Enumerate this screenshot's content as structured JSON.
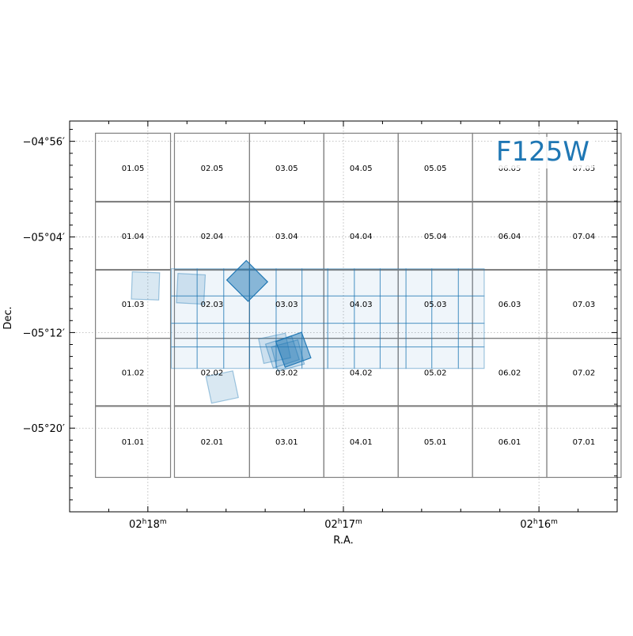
{
  "chart_data": {
    "type": "footprint-map",
    "filter_label": "F125W",
    "xlabel": "R.A.",
    "ylabel": "Dec.",
    "grid": true,
    "colors": {
      "accent": "#1f77b4",
      "tile_outline": "#808080",
      "grid": "#b0b0b0"
    },
    "ra_deg_range": [
      34.6,
      33.9
    ],
    "dec_deg_range": [
      -5.45,
      -4.905
    ],
    "ra_tick_labels": [
      {
        "ra": 34.5,
        "h": "02",
        "m": "18"
      },
      {
        "ra": 34.25,
        "h": "02",
        "m": "17"
      },
      {
        "ra": 34.0,
        "h": "02",
        "m": "16"
      }
    ],
    "dec_tick_labels": [
      {
        "dec": -4.9333,
        "label": "−04°56′"
      },
      {
        "dec": -5.0667,
        "label": "−05°04′"
      },
      {
        "dec": -5.2,
        "label": "−05°12′"
      },
      {
        "dec": -5.3333,
        "label": "−05°20′"
      }
    ],
    "tile_columns": [
      "01",
      "02",
      "03",
      "04",
      "05",
      "06",
      "07"
    ],
    "tile_rows": [
      "05",
      "04",
      "03",
      "02",
      "01"
    ],
    "tile_labels": [
      [
        "01.05",
        "02.05",
        "03.05",
        "04.05",
        "05.05",
        "06.05",
        "07.05"
      ],
      [
        "01.04",
        "02.04",
        "03.04",
        "04.04",
        "05.04",
        "06.04",
        "07.04"
      ],
      [
        "01.03",
        "02.03",
        "03.03",
        "04.03",
        "05.03",
        "06.03",
        "07.03"
      ],
      [
        "01.02",
        "02.02",
        "03.02",
        "04.02",
        "05.02",
        "06.02",
        "07.02"
      ],
      [
        "01.01",
        "02.01",
        "03.01",
        "04.01",
        "05.01",
        "06.01",
        "07.01"
      ]
    ],
    "tile_ra_bounds": [
      [
        34.567,
        34.471
      ],
      [
        34.466,
        34.37
      ],
      [
        34.37,
        34.275
      ],
      [
        34.275,
        34.18
      ],
      [
        34.18,
        34.085
      ],
      [
        34.085,
        33.99
      ],
      [
        33.99,
        33.895
      ]
    ],
    "tile_dec_bounds": [
      [
        -4.922,
        -5.018
      ],
      [
        -5.017,
        -5.113
      ],
      [
        -5.112,
        -5.208
      ],
      [
        -5.208,
        -5.303
      ],
      [
        -5.302,
        -5.402
      ]
    ],
    "pointings": [
      {
        "ra": 34.373,
        "dec": -5.128,
        "w": 0.0385,
        "h": 0.0385,
        "rot": 45,
        "alpha": 0.9
      },
      {
        "ra": 34.314,
        "dec": -5.224,
        "w": 0.035,
        "h": 0.038,
        "rot": -20,
        "alpha": 0.85
      },
      {
        "ra": 34.328,
        "dec": -5.227,
        "w": 0.035,
        "h": 0.035,
        "rot": -18,
        "alpha": 0.35
      },
      {
        "ra": 34.321,
        "dec": -5.232,
        "w": 0.035,
        "h": 0.035,
        "rot": -15,
        "alpha": 0.35
      },
      {
        "ra": 34.338,
        "dec": -5.222,
        "w": 0.035,
        "h": 0.035,
        "rot": -12,
        "alpha": 0.3
      },
      {
        "ra": 34.503,
        "dec": -5.135,
        "w": 0.035,
        "h": 0.038,
        "rot": 2,
        "alpha": 0.3
      },
      {
        "ra": 34.445,
        "dec": -5.139,
        "w": 0.035,
        "h": 0.041,
        "rot": 3,
        "alpha": 0.3
      },
      {
        "ra": 34.405,
        "dec": -5.276,
        "w": 0.035,
        "h": 0.038,
        "rot": -12,
        "alpha": 0.3
      }
    ],
    "mosaic_ra_grid": [
      34.47,
      34.437,
      34.403,
      34.37,
      34.336,
      34.303,
      34.27,
      34.236,
      34.203,
      34.17,
      34.137,
      34.103,
      34.07
    ],
    "mosaic_dec_grid": [
      -5.111,
      -5.149,
      -5.187,
      -5.22,
      -5.25
    ]
  }
}
